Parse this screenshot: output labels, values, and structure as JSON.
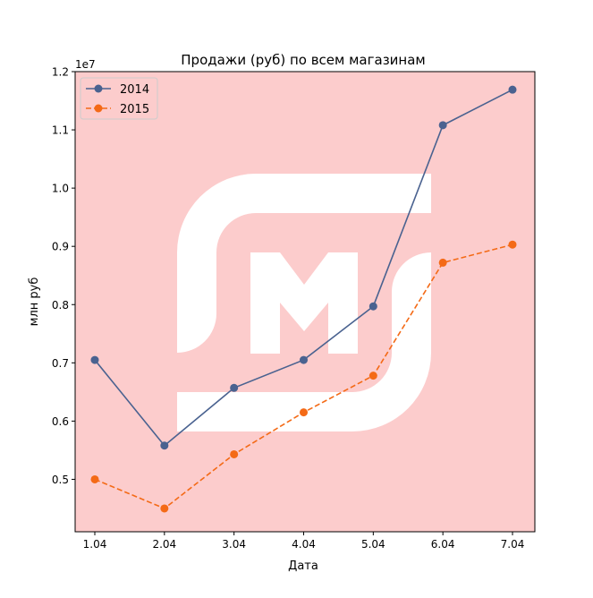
{
  "chart_data": {
    "type": "line",
    "title": "Продажи (руб) по всем магазинам",
    "xlabel": "Дата",
    "ylabel": "млн руб",
    "offset_text": "1e7",
    "categories": [
      "1.04",
      "2.04",
      "3.04",
      "4.04",
      "5.04",
      "6.04",
      "7.04"
    ],
    "y_ticks": [
      "0.5",
      "0.6",
      "0.7",
      "0.8",
      "0.9",
      "1.0",
      "1.1",
      "1.2"
    ],
    "y_tick_values": [
      5000000,
      6000000,
      7000000,
      8000000,
      9000000,
      10000000,
      11000000,
      12000000
    ],
    "ylim": [
      4100000,
      12000000
    ],
    "grid": false,
    "legend_position": "upper-left",
    "background_color": "#fccccc",
    "watermark_color": "#ffffff",
    "series": [
      {
        "name": "2014",
        "values": [
          7050000,
          5580000,
          6570000,
          7050000,
          7970000,
          11080000,
          11690000
        ],
        "color": "#4a6290",
        "line_style": "solid",
        "marker": "circle"
      },
      {
        "name": "2015",
        "values": [
          5000000,
          4500000,
          5430000,
          6150000,
          6780000,
          8720000,
          9030000
        ],
        "color": "#f46a16",
        "line_style": "dashed",
        "marker": "circle"
      }
    ]
  }
}
